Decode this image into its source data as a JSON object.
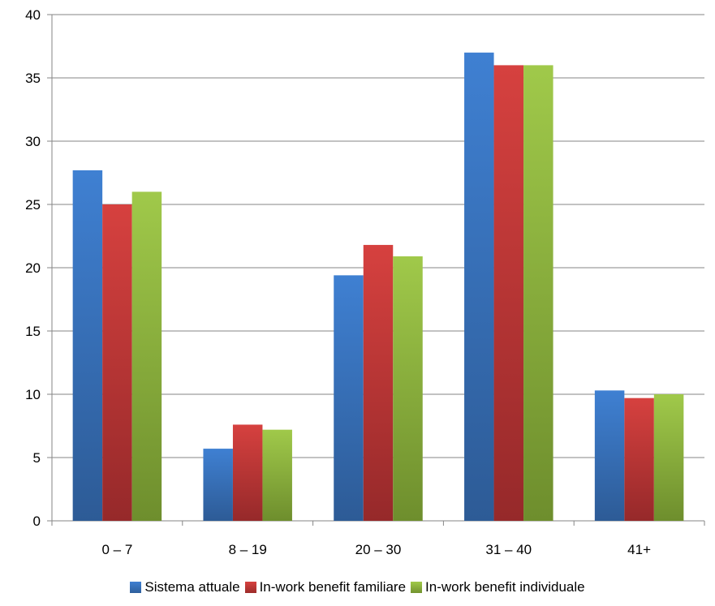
{
  "chart_data": {
    "type": "bar",
    "categories": [
      "0 – 7",
      "8 – 19",
      "20 – 30",
      "31 – 40",
      "41+"
    ],
    "series": [
      {
        "name": "Sistema attuale",
        "values": [
          27.7,
          5.7,
          19.4,
          37.0,
          10.3
        ],
        "color": "#3a78c8"
      },
      {
        "name": "In-work benefit familiare",
        "values": [
          25.0,
          7.6,
          21.8,
          36.0,
          9.7
        ],
        "color": "#c93a38"
      },
      {
        "name": "In-work benefit individuale",
        "values": [
          26.0,
          7.2,
          20.9,
          36.0,
          10.0
        ],
        "color": "#93bb40"
      }
    ],
    "yticks": [
      "0",
      "5",
      "10",
      "15",
      "20",
      "25",
      "30",
      "35",
      "40"
    ],
    "ylim": [
      0,
      40
    ],
    "grid": true,
    "legend_position": "bottom"
  }
}
